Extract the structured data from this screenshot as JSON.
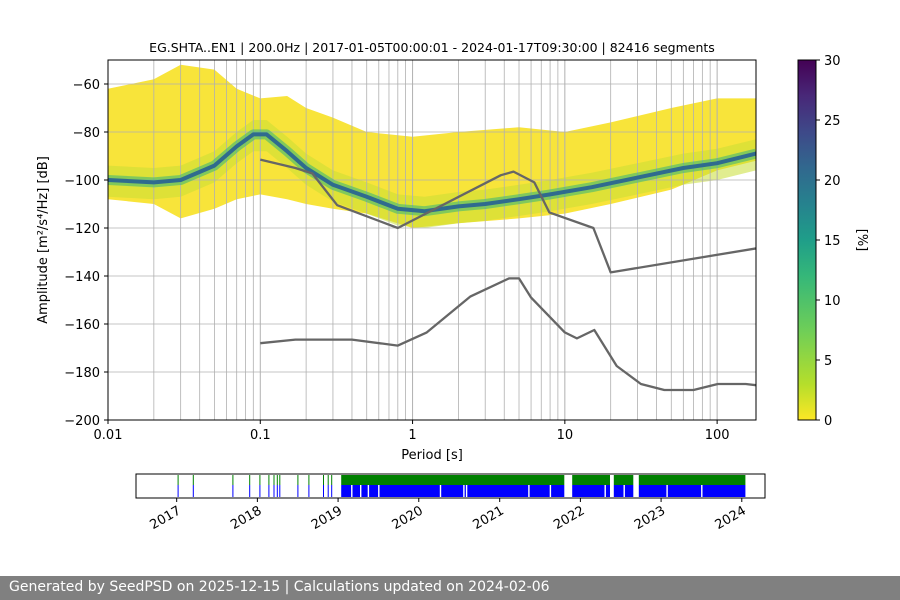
{
  "chart_data": [
    {
      "type": "heatmap",
      "title": "EG.SHTA..EN1 | 200.0Hz | 2017-01-05T00:00:01 - 2024-01-17T09:30:00 | 82416 segments",
      "xlabel": "Period [s]",
      "ylabel": "Amplitude [m²/s⁴/Hz] [dB]",
      "x_scale": "log",
      "xlim": [
        0.01,
        180
      ],
      "ylim": [
        -200,
        -50
      ],
      "x_ticks": [
        "0.01",
        "0.1",
        "1",
        "10",
        "100"
      ],
      "y_ticks": [
        "−60",
        "−80",
        "−100",
        "−120",
        "−140",
        "−160",
        "−180",
        "−200"
      ],
      "y_tick_values": [
        -60,
        -80,
        -100,
        -120,
        -140,
        -160,
        -180,
        -200
      ],
      "grid": true,
      "colormap": "viridis_r",
      "colorbar": {
        "label": "[%]",
        "range": [
          0,
          30
        ],
        "ticks": [
          "0",
          "5",
          "10",
          "15",
          "20",
          "25",
          "30"
        ],
        "tick_values": [
          0,
          5,
          10,
          15,
          20,
          25,
          30
        ]
      },
      "mode_curve": {
        "period": [
          0.01,
          0.02,
          0.03,
          0.05,
          0.07,
          0.09,
          0.11,
          0.15,
          0.2,
          0.3,
          0.5,
          0.8,
          1.2,
          2,
          3,
          5,
          8,
          15,
          30,
          60,
          100,
          180
        ],
        "db": [
          -100,
          -101,
          -100,
          -94,
          -86,
          -81,
          -81,
          -88,
          -95,
          -102,
          -107,
          -112,
          -113,
          -111,
          -110,
          -108,
          -106,
          -103,
          -99,
          -95,
          -93,
          -89
        ]
      },
      "density_band": {
        "period": [
          0.01,
          0.02,
          0.03,
          0.05,
          0.07,
          0.1,
          0.15,
          0.2,
          0.3,
          0.5,
          1,
          2,
          5,
          10,
          20,
          50,
          100,
          180
        ],
        "upper_db": [
          -62,
          -58,
          -52,
          -54,
          -62,
          -66,
          -65,
          -70,
          -74,
          -80,
          -82,
          -80,
          -78,
          -80,
          -76,
          -70,
          -66,
          -66
        ],
        "lower_db": [
          -108,
          -110,
          -116,
          -112,
          -108,
          -106,
          -108,
          -110,
          -112,
          -114,
          -120,
          -118,
          -116,
          -114,
          -110,
          -104,
          -96,
          -92
        ]
      },
      "noise_models": [
        {
          "period": [
            0.1,
            0.17,
            0.22,
            0.32,
            0.8,
            3.8,
            4.6,
            6.3,
            7.9,
            15.4,
            20,
            180
          ],
          "db": [
            -91.5,
            -95,
            -97.3,
            -110.5,
            -120,
            -98,
            -96.5,
            -101,
            -113.5,
            -120,
            -138.5,
            -128.5
          ]
        },
        {
          "period": [
            0.1,
            0.17,
            0.4,
            0.8,
            1.24,
            2.4,
            4.3,
            5,
            6,
            10,
            12,
            15.6,
            21.9,
            31.6,
            45,
            70,
            101,
            154,
            180
          ],
          "db": [
            -168,
            -166.5,
            -166.5,
            -169,
            -163.5,
            -148.5,
            -141,
            -141,
            -149,
            -163.5,
            -166,
            -162.5,
            -177.5,
            -185,
            -187.5,
            -187.5,
            -185,
            -185,
            -185.5
          ]
        }
      ]
    },
    {
      "type": "timeline",
      "x_ticks": [
        "2017",
        "2018",
        "2019",
        "2020",
        "2021",
        "2022",
        "2023",
        "2024"
      ],
      "xlim": [
        "2016-07-01",
        "2024-04-15"
      ],
      "series": [
        {
          "color": "#008000",
          "level": "upper",
          "intervals": [
            [
              "2019-01-15",
              "2021-10-20"
            ],
            [
              "2021-11-25",
              "2022-05-15"
            ],
            [
              "2022-06-01",
              "2022-08-28"
            ],
            [
              "2022-09-22",
              "2024-01-17"
            ]
          ]
        },
        {
          "color": "#0000ff",
          "level": "lower",
          "intervals": [
            [
              "2019-01-15",
              "2021-10-20"
            ],
            [
              "2021-11-25",
              "2022-05-15"
            ],
            [
              "2022-06-01",
              "2022-08-28"
            ],
            [
              "2022-09-22",
              "2024-01-17"
            ]
          ],
          "gaps": [
            "2019-03-01",
            "2019-04-10",
            "2019-05-15",
            "2019-07-01",
            "2020-04-05",
            "2020-07-20",
            "2020-08-01",
            "2021-05-10",
            "2021-08-15",
            "2022-04-20",
            "2022-07-15",
            "2023-01-25",
            "2023-07-01"
          ]
        }
      ],
      "sparse_marks": [
        "2017-01-05",
        "2017-03-15",
        "2017-09-10",
        "2017-11-25",
        "2018-01-10",
        "2018-02-20",
        "2018-03-15",
        "2018-03-30",
        "2018-04-10",
        "2018-07-01",
        "2018-08-20",
        "2018-10-25",
        "2018-11-15",
        "2018-12-01"
      ]
    }
  ],
  "colors": {
    "noise_model": "#666666",
    "grid": "#b0b0b0",
    "timeline_upper": "#008000",
    "timeline_lower": "#0000ff",
    "footer_bg": "#808080"
  },
  "footer": {
    "text": "Generated by SeedPSD on 2025-12-15 | Calculations updated on 2024-02-06"
  }
}
